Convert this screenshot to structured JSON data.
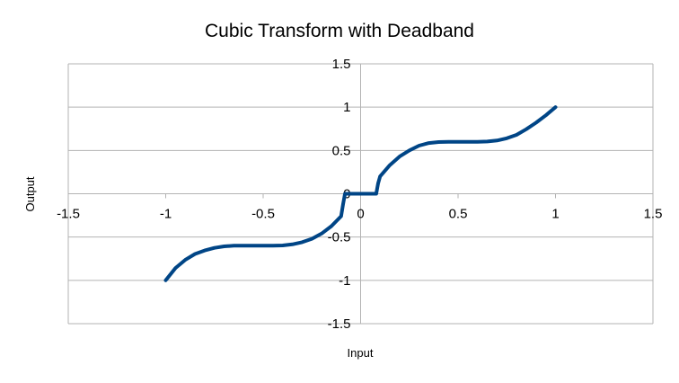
{
  "chart_data": {
    "type": "line",
    "title": "Cubic Transform with Deadband",
    "xlabel": "Input",
    "ylabel": "Output",
    "xlim": [
      -1.5,
      1.5
    ],
    "ylim": [
      -1.5,
      1.5
    ],
    "xticks": [
      "-1.5",
      "-1",
      "-0.5",
      "0",
      "0.5",
      "1",
      "1.5"
    ],
    "yticks": [
      "-1.5",
      "-1",
      "-0.5",
      "0",
      "0.5",
      "1",
      "1.5"
    ],
    "grid": true,
    "line_color": "#004586",
    "series": [
      {
        "x": [
          -1,
          -0.95,
          -0.9,
          -0.85,
          -0.8,
          -0.75,
          -0.7,
          -0.65,
          -0.6,
          -0.55,
          -0.5,
          -0.45,
          -0.4,
          -0.35,
          -0.3,
          -0.25,
          -0.2,
          -0.15,
          -0.1,
          -0.09,
          -0.08,
          0,
          0.08,
          0.09,
          0.1,
          0.15,
          0.2,
          0.25,
          0.3,
          0.35,
          0.4,
          0.45,
          0.5,
          0.55,
          0.6,
          0.65,
          0.7,
          0.75,
          0.8,
          0.85,
          0.9,
          0.95,
          1
        ],
        "y": [
          -1,
          -0.857,
          -0.764,
          -0.696,
          -0.655,
          -0.625,
          -0.607,
          -0.6,
          -0.6,
          -0.6,
          -0.6,
          -0.6,
          -0.597,
          -0.584,
          -0.56,
          -0.52,
          -0.46,
          -0.375,
          -0.26,
          -0.12,
          0,
          0,
          0,
          0.12,
          0.2,
          0.33,
          0.43,
          0.5,
          0.555,
          0.585,
          0.597,
          0.6,
          0.6,
          0.6,
          0.6,
          0.603,
          0.615,
          0.64,
          0.68,
          0.745,
          0.82,
          0.905,
          1
        ]
      }
    ]
  }
}
